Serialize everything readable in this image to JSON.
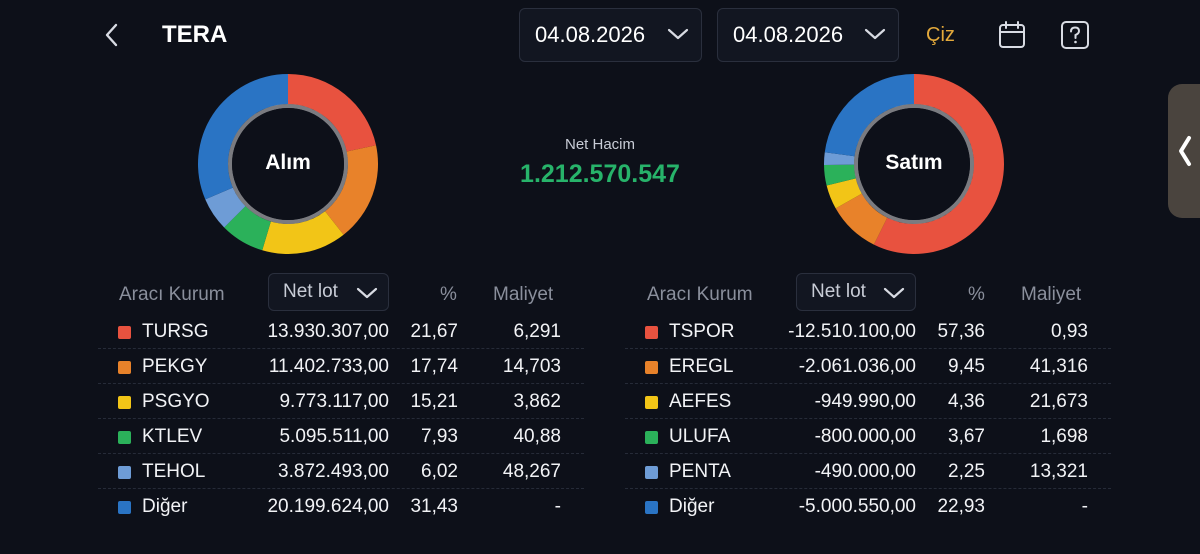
{
  "header": {
    "title": "TERA",
    "start_date": "04.08.2026",
    "end_date": "04.08.2026",
    "draw_label": "Çiz",
    "accent_color": "#e3a93b"
  },
  "summary": {
    "net_volume_label": "Net Hacim",
    "net_volume_value": "1.212.570.547",
    "net_volume_color": "#27b36a"
  },
  "buy": {
    "label": "Alım",
    "columns": {
      "broker": "Aracı Kurum",
      "sort": "Net lot",
      "pct": "%",
      "cost": "Maliyet"
    },
    "rows": [
      {
        "name": "TURSG",
        "lot": "13.930.307,00",
        "pct": "21,67",
        "cost": "6,291",
        "color": "#e8523f",
        "share": 21.67
      },
      {
        "name": "PEKGY",
        "lot": "11.402.733,00",
        "pct": "17,74",
        "cost": "14,703",
        "color": "#e8822a",
        "share": 17.74
      },
      {
        "name": "PSGYO",
        "lot": "9.773.117,00",
        "pct": "15,21",
        "cost": "3,862",
        "color": "#f2c517",
        "share": 15.21
      },
      {
        "name": "KTLEV",
        "lot": "5.095.511,00",
        "pct": "7,93",
        "cost": "40,88",
        "color": "#2bb15a",
        "share": 7.93
      },
      {
        "name": "TEHOL",
        "lot": "3.872.493,00",
        "pct": "6,02",
        "cost": "48,267",
        "color": "#6e9cd6",
        "share": 6.02
      },
      {
        "name": "Diğer",
        "lot": "20.199.624,00",
        "pct": "31,43",
        "cost": "-",
        "color": "#2a74c4",
        "share": 31.43
      }
    ]
  },
  "sell": {
    "label": "Satım",
    "columns": {
      "broker": "Aracı Kurum",
      "sort": "Net lot",
      "pct": "%",
      "cost": "Maliyet"
    },
    "rows": [
      {
        "name": "TSPOR",
        "lot": "-12.510.100,00",
        "pct": "57,36",
        "cost": "0,93",
        "color": "#e8523f",
        "share": 57.36
      },
      {
        "name": "EREGL",
        "lot": "-2.061.036,00",
        "pct": "9,45",
        "cost": "41,316",
        "color": "#e8822a",
        "share": 9.45
      },
      {
        "name": "AEFES",
        "lot": "-949.990,00",
        "pct": "4,36",
        "cost": "21,673",
        "color": "#f2c517",
        "share": 4.36
      },
      {
        "name": "ULUFA",
        "lot": "-800.000,00",
        "pct": "3,67",
        "cost": "1,698",
        "color": "#2bb15a",
        "share": 3.67
      },
      {
        "name": "PENTA",
        "lot": "-490.000,00",
        "pct": "2,25",
        "cost": "13,321",
        "color": "#6e9cd6",
        "share": 2.25
      },
      {
        "name": "Diğer",
        "lot": "-5.000.550,00",
        "pct": "22,93",
        "cost": "-",
        "color": "#2a74c4",
        "share": 22.93
      }
    ]
  }
}
